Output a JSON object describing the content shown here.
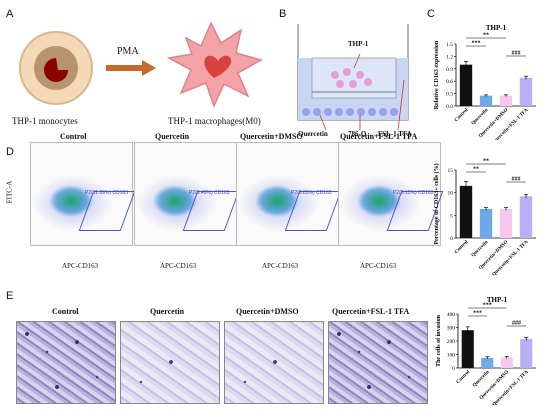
{
  "panels": {
    "a": {
      "label": "A",
      "cell1": "THP-1 monocytes",
      "arrow": "PMA",
      "cell2": "THP-1 macrophages(M0)"
    },
    "b": {
      "label": "B",
      "top": "THP-1",
      "left": "Quercetin",
      "mid": "786-O",
      "right": "FSL-1 TFA"
    },
    "d": {
      "label": "D",
      "columns": [
        "Control",
        "Quercetin",
        "Quercetin+DMSO",
        "Quercetin+FSL-1 TFA"
      ],
      "ylabel": "FITC-A",
      "xlabel": "APC-CD163",
      "gates": [
        "P2(11.09%) CD163",
        "P2(6.49%) CD163",
        "P2(6.85%) CD163",
        "P2(9.15%) CD163"
      ]
    },
    "e": {
      "label": "E",
      "columns": [
        "Control",
        "Quercetin",
        "Quercetin+DMSO",
        "Quercetin+FSL-1 TFA"
      ]
    }
  },
  "chart_data": [
    {
      "type": "bar",
      "panel": "C",
      "title": "THP-1",
      "ylabel": "Relative CD163 expression",
      "categories": [
        "Control",
        "Quercetin",
        "Quercetin+DMSO",
        "Quercetin+FSL-1 TFA"
      ],
      "values": [
        1.0,
        0.25,
        0.25,
        0.68
      ],
      "errors": [
        0.08,
        0.02,
        0.02,
        0.04
      ],
      "ylim": [
        0,
        1.5
      ],
      "yticks": [
        "0.0",
        "0.3",
        "0.6",
        "0.9",
        "1.2",
        "1.5"
      ],
      "colors": [
        "#111111",
        "#6fa8e8",
        "#f6c6ee",
        "#b9b0f4"
      ],
      "sig": [
        "***",
        "**",
        "###"
      ]
    },
    {
      "type": "bar",
      "panel": "D",
      "ylabel": "Percentage of CD163+ cells (%)",
      "categories": [
        "Control",
        "Quercetin",
        "Quercetin+DMSO",
        "Quercetin+FSL-1 TFA"
      ],
      "values": [
        11.5,
        6.4,
        6.4,
        9.2
      ],
      "errors": [
        1.0,
        0.3,
        0.3,
        0.4
      ],
      "ylim": [
        0,
        15
      ],
      "yticks": [
        "0",
        "5",
        "10",
        "15"
      ],
      "colors": [
        "#111111",
        "#6fa8e8",
        "#f6c6ee",
        "#b9b0f4"
      ],
      "sig": [
        "**",
        "**",
        "###"
      ]
    },
    {
      "type": "bar",
      "panel": "E",
      "title": "THP-1",
      "ylabel": "The cells of invasion",
      "categories": [
        "Control",
        "Quercetin",
        "Quercetin+DMSO",
        "Quercetin+FSL-1 TFA"
      ],
      "values": [
        280,
        75,
        78,
        215
      ],
      "errors": [
        25,
        8,
        8,
        12
      ],
      "ylim": [
        0,
        400
      ],
      "yticks": [
        "0",
        "100",
        "200",
        "300",
        "400"
      ],
      "colors": [
        "#111111",
        "#6fa8e8",
        "#f6c6ee",
        "#b9b0f4"
      ],
      "sig": [
        "***",
        "***",
        "###"
      ]
    }
  ]
}
